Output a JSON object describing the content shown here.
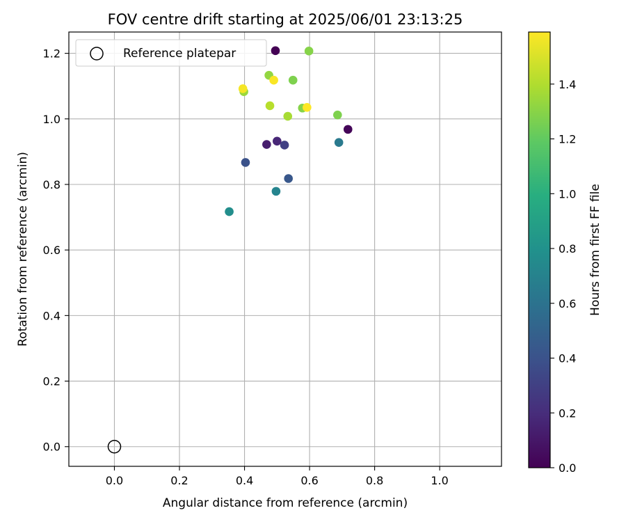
{
  "chart_data": {
    "type": "scatter",
    "title": "FOV centre drift starting at 2025/06/01 23:13:25",
    "xlabel": "Angular distance from reference (arcmin)",
    "ylabel": "Rotation from reference (arcmin)",
    "xlim": [
      -0.14,
      1.19
    ],
    "ylim": [
      -0.06,
      1.265
    ],
    "x_ticks": [
      0.0,
      0.2,
      0.4,
      0.6,
      0.8,
      1.0
    ],
    "x_tick_labels": [
      "0.0",
      "0.2",
      "0.4",
      "0.6",
      "0.8",
      "1.0"
    ],
    "y_ticks": [
      0.0,
      0.2,
      0.4,
      0.6,
      0.8,
      1.0,
      1.2
    ],
    "y_tick_labels": [
      "0.0",
      "0.2",
      "0.4",
      "0.6",
      "0.8",
      "1.0",
      "1.2"
    ],
    "grid": true,
    "colormap": "viridis",
    "colorbar": {
      "label": "Hours from first FF file",
      "min": 0.0,
      "max": 1.59,
      "ticks": [
        0.0,
        0.2,
        0.4,
        0.6,
        0.8,
        1.0,
        1.2,
        1.4
      ],
      "tick_labels": [
        "0.0",
        "0.2",
        "0.4",
        "0.6",
        "0.8",
        "1.0",
        "1.2",
        "1.4"
      ]
    },
    "legend": {
      "placement": "top-left",
      "entries": [
        "Reference platepar"
      ]
    },
    "reference_point": {
      "x": 0.0,
      "y": 0.0,
      "marker": "open-circle",
      "label": "Reference platepar"
    },
    "points": [
      {
        "x": 0.495,
        "y": 1.208,
        "hours": 0.0
      },
      {
        "x": 0.718,
        "y": 0.968,
        "hours": 0.02
      },
      {
        "x": 0.468,
        "y": 0.922,
        "hours": 0.13
      },
      {
        "x": 0.5,
        "y": 0.932,
        "hours": 0.17
      },
      {
        "x": 0.523,
        "y": 0.92,
        "hours": 0.3
      },
      {
        "x": 0.403,
        "y": 0.867,
        "hours": 0.4
      },
      {
        "x": 0.535,
        "y": 0.818,
        "hours": 0.43
      },
      {
        "x": 0.69,
        "y": 0.928,
        "hours": 0.65
      },
      {
        "x": 0.497,
        "y": 0.779,
        "hours": 0.72
      },
      {
        "x": 0.353,
        "y": 0.717,
        "hours": 0.78
      },
      {
        "x": 0.686,
        "y": 1.012,
        "hours": 1.28
      },
      {
        "x": 0.598,
        "y": 1.207,
        "hours": 1.3
      },
      {
        "x": 0.549,
        "y": 1.118,
        "hours": 1.28
      },
      {
        "x": 0.475,
        "y": 1.133,
        "hours": 1.33
      },
      {
        "x": 0.578,
        "y": 1.033,
        "hours": 1.3
      },
      {
        "x": 0.398,
        "y": 1.083,
        "hours": 1.35
      },
      {
        "x": 0.533,
        "y": 1.008,
        "hours": 1.38
      },
      {
        "x": 0.478,
        "y": 1.04,
        "hours": 1.42
      },
      {
        "x": 0.395,
        "y": 1.092,
        "hours": 1.57
      },
      {
        "x": 0.49,
        "y": 1.118,
        "hours": 1.58
      },
      {
        "x": 0.592,
        "y": 1.035,
        "hours": 1.59
      }
    ]
  }
}
